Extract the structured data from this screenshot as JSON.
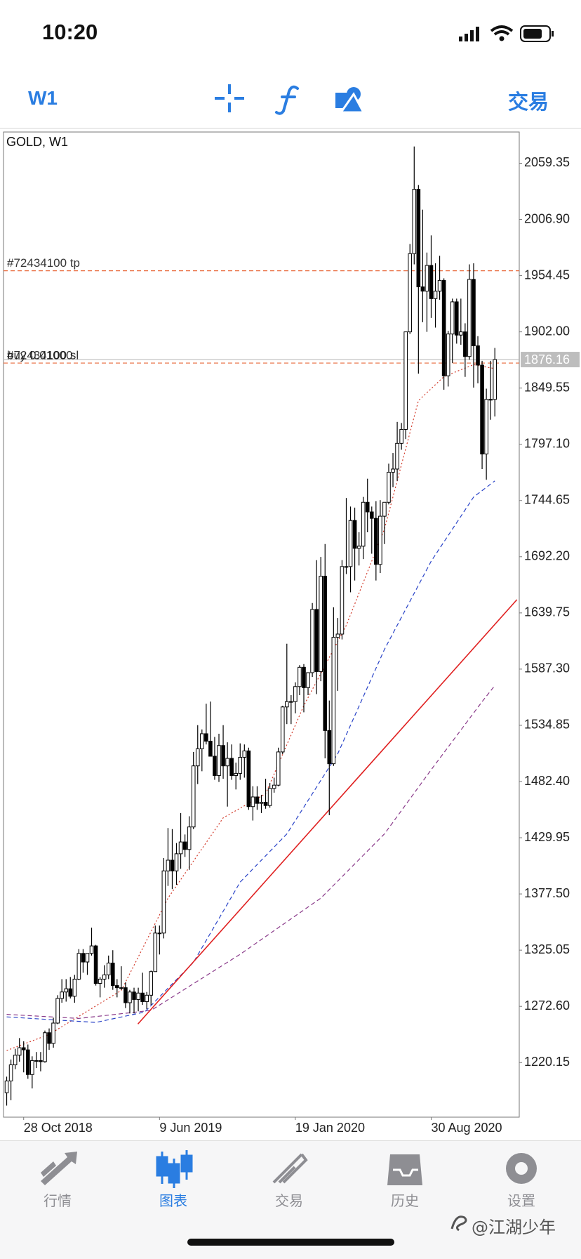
{
  "status_bar": {
    "time": "10:20"
  },
  "toolbar": {
    "timeframe": "W1",
    "trade": "交易"
  },
  "tabs": [
    "行情",
    "图表",
    "交易",
    "历史",
    "设置"
  ],
  "watermark": "@江湖少年",
  "chart_data": {
    "type": "candlestick",
    "title": "GOLD, W1",
    "ylim": [
      1169.2,
      2088.5
    ],
    "yticks": [
      2059.35,
      {
        "value": 2006.9,
        "label": "2006.90"
      },
      1954.45,
      {
        "value": 1902,
        "label": "1902.00"
      },
      1849.55,
      {
        "value": 1797.1,
        "label": "1797.10"
      },
      1744.65,
      {
        "value": 1692.2,
        "label": "1692.20"
      },
      1639.75,
      {
        "value": 1587.3,
        "label": "1587.30"
      },
      1534.85,
      {
        "value": 1482.4,
        "label": "1482.40"
      },
      1429.95,
      {
        "value": 1377.5,
        "label": "1377.50"
      },
      1325.05,
      {
        "value": 1272.6,
        "label": "1272.60"
      },
      1220.15
    ],
    "xlim": [
      -0.75,
      120.75
    ],
    "xticks": [
      {
        "value": 4,
        "label": "28 Oct 2018"
      },
      {
        "value": 36,
        "label": "9 Jun 2019"
      },
      {
        "value": 68,
        "label": "19 Jan 2020"
      },
      {
        "value": 100,
        "label": "30 Aug 2020"
      }
    ],
    "up_color": "#ffffff",
    "down_color": "#000000",
    "open": [
      1192,
      1203,
      1218,
      1227,
      1234,
      1232,
      1209,
      1222,
      1222,
      1221,
      1248,
      1238,
      1257,
      1280,
      1286,
      1289,
      1282,
      1298,
      1322,
      1314,
      1322,
      1329,
      1294,
      1298,
      1302,
      1313,
      1292,
      1290,
      1290,
      1276,
      1286,
      1279,
      1285,
      1277,
      1283,
      1305,
      1341,
      1341,
      1399,
      1409,
      1399,
      1415,
      1426,
      1419,
      1440,
      1497,
      1513,
      1527,
      1520,
      1506,
      1488,
      1516,
      1497,
      1504,
      1488,
      1490,
      1505,
      1511,
      1459,
      1468,
      1462,
      1463,
      1460,
      1476,
      1479,
      1510,
      1552,
      1557,
      1557,
      1571,
      1589,
      1570,
      1584,
      1643,
      1585,
      1674,
      1530,
      1499,
      1617,
      1620,
      1683,
      1683,
      1726,
      1700,
      1702,
      1743,
      1734,
      1728,
      1685,
      1730,
      1743,
      1771,
      1774,
      1798,
      1811,
      1902,
      1975,
      2035,
      1944,
      1940,
      1964,
      1933,
      1940,
      1950,
      1861,
      1900,
      1930,
      1899,
      1902,
      1879,
      1951,
      1889,
      1871,
      1788,
      1839,
      1839
    ],
    "high": [
      1207,
      1223,
      1233,
      1243,
      1240,
      1237,
      1226,
      1230,
      1230,
      1250,
      1252,
      1262,
      1283,
      1298,
      1298,
      1300,
      1302,
      1326,
      1326,
      1322,
      1346,
      1330,
      1300,
      1311,
      1320,
      1325,
      1298,
      1310,
      1295,
      1288,
      1290,
      1290,
      1304,
      1286,
      1306,
      1348,
      1348,
      1411,
      1439,
      1438,
      1425,
      1453,
      1433,
      1450,
      1510,
      1535,
      1531,
      1555,
      1557,
      1524,
      1527,
      1535,
      1519,
      1517,
      1500,
      1518,
      1517,
      1514,
      1478,
      1478,
      1470,
      1485,
      1481,
      1486,
      1514,
      1553,
      1611,
      1563,
      1575,
      1591,
      1592,
      1584,
      1649,
      1689,
      1692,
      1704,
      1558,
      1645,
      1635,
      1689,
      1747,
      1739,
      1738,
      1715,
      1748,
      1765,
      1739,
      1744,
      1745,
      1740,
      1779,
      1789,
      1818,
      1817,
      1902,
      1984,
      2075,
      2039,
      2016,
      1976,
      1992,
      1966,
      1973,
      1952,
      1903,
      1933,
      1933,
      1933,
      1910,
      1965,
      1966,
      1898,
      1875,
      1849,
      1875,
      1887
    ],
    "low": [
      1180,
      1185,
      1214,
      1221,
      1211,
      1205,
      1196,
      1215,
      1212,
      1220,
      1232,
      1234,
      1256,
      1276,
      1277,
      1280,
      1276,
      1297,
      1304,
      1302,
      1320,
      1292,
      1281,
      1290,
      1298,
      1288,
      1281,
      1288,
      1271,
      1266,
      1266,
      1268,
      1274,
      1270,
      1274,
      1305,
      1321,
      1336,
      1385,
      1382,
      1386,
      1401,
      1412,
      1400,
      1438,
      1480,
      1492,
      1517,
      1506,
      1484,
      1482,
      1485,
      1459,
      1484,
      1475,
      1484,
      1486,
      1456,
      1446,
      1456,
      1453,
      1457,
      1458,
      1472,
      1478,
      1508,
      1536,
      1536,
      1546,
      1563,
      1547,
      1563,
      1580,
      1564,
      1576,
      1504,
      1451,
      1497,
      1567,
      1615,
      1676,
      1659,
      1670,
      1684,
      1690,
      1715,
      1695,
      1670,
      1677,
      1704,
      1741,
      1757,
      1763,
      1792,
      1802,
      1900,
      1965,
      1863,
      1911,
      1902,
      1915,
      1906,
      1932,
      1848,
      1851,
      1873,
      1891,
      1890,
      1860,
      1876,
      1850,
      1854,
      1774,
      1764,
      1820,
      1823
    ],
    "close": [
      1203,
      1218,
      1227,
      1234,
      1232,
      1209,
      1222,
      1222,
      1221,
      1248,
      1238,
      1257,
      1280,
      1286,
      1289,
      1282,
      1298,
      1322,
      1314,
      1322,
      1329,
      1294,
      1298,
      1302,
      1313,
      1292,
      1290,
      1290,
      1276,
      1286,
      1279,
      1285,
      1277,
      1283,
      1305,
      1341,
      1341,
      1399,
      1409,
      1399,
      1415,
      1426,
      1419,
      1440,
      1497,
      1513,
      1527,
      1520,
      1506,
      1488,
      1516,
      1497,
      1504,
      1488,
      1490,
      1505,
      1511,
      1459,
      1468,
      1462,
      1463,
      1460,
      1476,
      1479,
      1510,
      1552,
      1557,
      1557,
      1571,
      1589,
      1570,
      1584,
      1643,
      1585,
      1674,
      1530,
      1499,
      1617,
      1620,
      1683,
      1683,
      1726,
      1700,
      1702,
      1743,
      1734,
      1728,
      1685,
      1730,
      1743,
      1771,
      1774,
      1798,
      1811,
      1902,
      1975,
      2035,
      1944,
      1940,
      1964,
      1933,
      1940,
      1950,
      1861,
      1900,
      1930,
      1899,
      1902,
      1879,
      1951,
      1889,
      1871,
      1788,
      1839,
      1839,
      1876.16
    ],
    "lines": [
      {
        "color": "#d23a2a",
        "dash": "2,3",
        "x": [
          0,
          10,
          27,
          38,
          51,
          61,
          70,
          80,
          89,
          97,
          103,
          110,
          115
        ],
        "values": [
          1231.4,
          1246.4,
          1287.5,
          1373.6,
          1448.5,
          1471.0,
          1553.3,
          1628.1,
          1718.0,
          1837.8,
          1860.2,
          1871.4,
          1867.7
        ]
      },
      {
        "color": "#2a44c8",
        "dash": "6,4",
        "x": [
          0,
          21,
          32.5,
          44,
          55,
          66,
          78,
          89,
          100,
          110,
          115
        ],
        "values": [
          1262.8,
          1257.6,
          1267.3,
          1313.7,
          1388.6,
          1433.5,
          1508.4,
          1605.7,
          1688.0,
          1747.9,
          1762.9
        ]
      },
      {
        "color": "#8a3a8a",
        "dash": "6,4",
        "x": [
          0,
          17,
          34,
          55,
          74,
          89,
          100,
          112,
          115
        ],
        "values": [
          1265.1,
          1261.3,
          1268.8,
          1321.2,
          1373.6,
          1433.5,
          1493.4,
          1557.0,
          1572.0
        ]
      }
    ],
    "trendline": {
      "color": "#e02020",
      "x": [
        30.9,
        120.2
      ],
      "values": [
        1256.1,
        1652.1
      ]
    },
    "levels": [
      {
        "value": 1959.0,
        "color": "#e8693a",
        "labels": [
          "#72434100 tp"
        ]
      },
      {
        "value": 1872.9,
        "color": "#e8693a",
        "labels": [
          "#72434100 sl",
          "buy 0.01000"
        ]
      }
    ],
    "last_price": {
      "value": 1876.16,
      "color": "#bdbdbd"
    }
  }
}
